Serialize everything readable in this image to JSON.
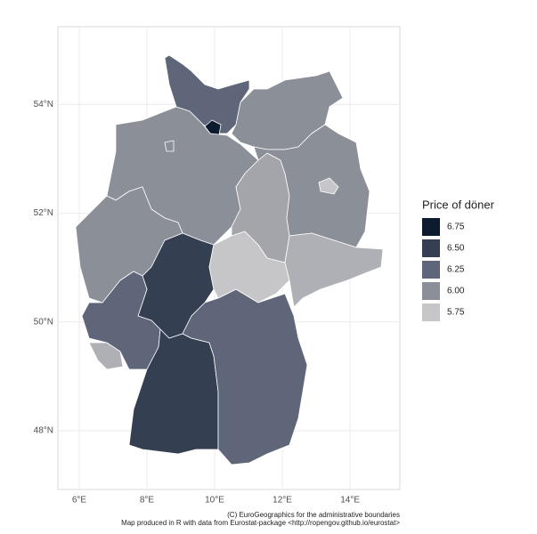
{
  "chart_data": {
    "type": "choropleth",
    "legend_title": "Price of döner",
    "legend": [
      {
        "value": 6.75,
        "label": "6.75",
        "color": "#0d1b2e"
      },
      {
        "value": 6.5,
        "label": "6.50",
        "color": "#353f52"
      },
      {
        "value": 6.25,
        "label": "6.25",
        "color": "#60667a"
      },
      {
        "value": 6.0,
        "label": "6.00",
        "color": "#8b8f98"
      },
      {
        "value": 5.75,
        "label": "5.75",
        "color": "#c6c6c8"
      }
    ],
    "values": [
      6.25,
      6.75,
      6.0,
      6.0,
      6.0,
      6.0,
      6.5,
      6.25,
      5.85,
      6.5,
      6.25,
      5.7,
      5.9,
      6.0,
      5.75,
      5.85
    ],
    "xlim": [
      5.37,
      15.47
    ],
    "ylim": [
      46.92,
      55.43
    ],
    "xticks": [
      {
        "value": 6,
        "label": "6°E"
      },
      {
        "value": 8,
        "label": "8°E"
      },
      {
        "value": 10,
        "label": "10°E"
      },
      {
        "value": 12,
        "label": "12°E"
      },
      {
        "value": 14,
        "label": "14°E"
      }
    ],
    "yticks": [
      {
        "value": 48,
        "label": "48°N"
      },
      {
        "value": 50,
        "label": "50°N"
      },
      {
        "value": 52,
        "label": "52°N"
      },
      {
        "value": 54,
        "label": "54°N"
      }
    ],
    "grid": true,
    "caption": [
      "(C) EuroGeographics for the administrative boundaries",
      "Map produced in R with data from Eurostat-package <http://ropengov.github.io/eurostat>"
    ]
  }
}
